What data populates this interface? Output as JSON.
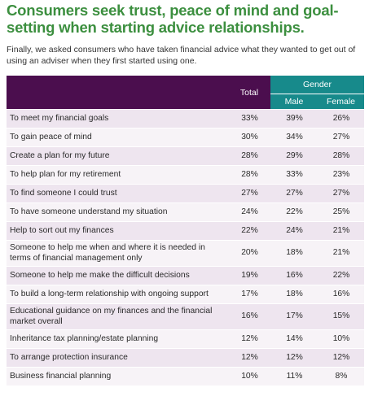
{
  "title": "Consumers seek trust, peace of mind and goal-setting when starting advice relationships.",
  "subtitle": "Finally, we asked consumers who have taken financial advice what they wanted to get out of using an adviser when they first started using one.",
  "table": {
    "header": {
      "total": "Total",
      "gender": "Gender",
      "male": "Male",
      "female": "Female"
    },
    "rows": [
      [
        "To meet my financial goals",
        "33%",
        "39%",
        "26%"
      ],
      [
        "To gain peace of mind",
        "30%",
        "34%",
        "27%"
      ],
      [
        "Create a plan for my future",
        "28%",
        "29%",
        "28%"
      ],
      [
        "To help plan for my retirement",
        "28%",
        "33%",
        "23%"
      ],
      [
        "To find someone I could trust",
        "27%",
        "27%",
        "27%"
      ],
      [
        "To have someone understand my situation",
        "24%",
        "22%",
        "25%"
      ],
      [
        "Help to sort out my finances",
        "22%",
        "24%",
        "21%"
      ],
      [
        "Someone to help me when and where it is needed in terms of financial management only",
        "20%",
        "18%",
        "21%"
      ],
      [
        "Someone to help me make the difficult decisions",
        "19%",
        "16%",
        "22%"
      ],
      [
        "To build a long-term relationship with ongoing support",
        "17%",
        "18%",
        "16%"
      ],
      [
        "Educational guidance on my finances and the financial market overall",
        "16%",
        "17%",
        "15%"
      ],
      [
        "Inheritance tax planning/estate planning",
        "12%",
        "14%",
        "10%"
      ],
      [
        "To arrange protection insurance",
        "12%",
        "12%",
        "12%"
      ],
      [
        "Business financial planning",
        "10%",
        "11%",
        "8%"
      ]
    ]
  }
}
